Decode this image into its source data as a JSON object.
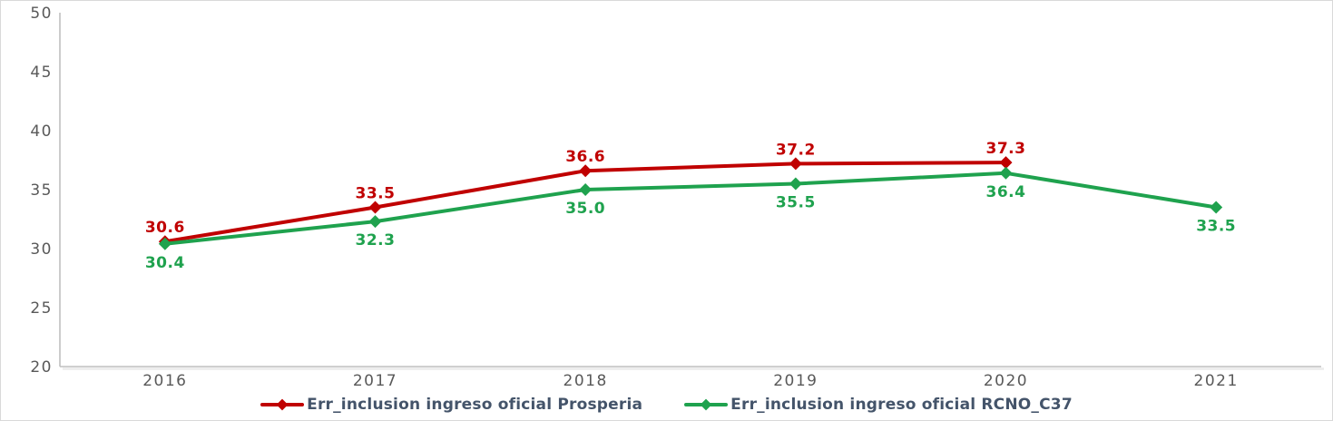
{
  "chart_data": {
    "type": "line",
    "title": "",
    "xlabel": "",
    "ylabel": "",
    "categories": [
      "2016",
      "2017",
      "2018",
      "2019",
      "2020",
      "2021"
    ],
    "series": [
      {
        "name": "Err_inclusion ingreso oficial Prosperia",
        "color": "#c00000",
        "values": [
          30.6,
          33.5,
          36.6,
          37.2,
          37.3,
          null
        ],
        "label_position": "above"
      },
      {
        "name": "Err_inclusion ingreso oficial RCNO_C37",
        "color": "#1fa24e",
        "values": [
          30.4,
          32.3,
          35.0,
          35.5,
          36.4,
          33.5
        ],
        "label_position": "below"
      }
    ],
    "data_labels": true,
    "ylim": [
      20,
      50
    ],
    "yticks": [
      20,
      25,
      30,
      35,
      40,
      45,
      50
    ],
    "grid": false,
    "legend_position": "bottom",
    "marker": "diamond",
    "axis_color": "#bfbfbf",
    "tick_color": "#595959",
    "legend_text_color": "#44546a"
  }
}
